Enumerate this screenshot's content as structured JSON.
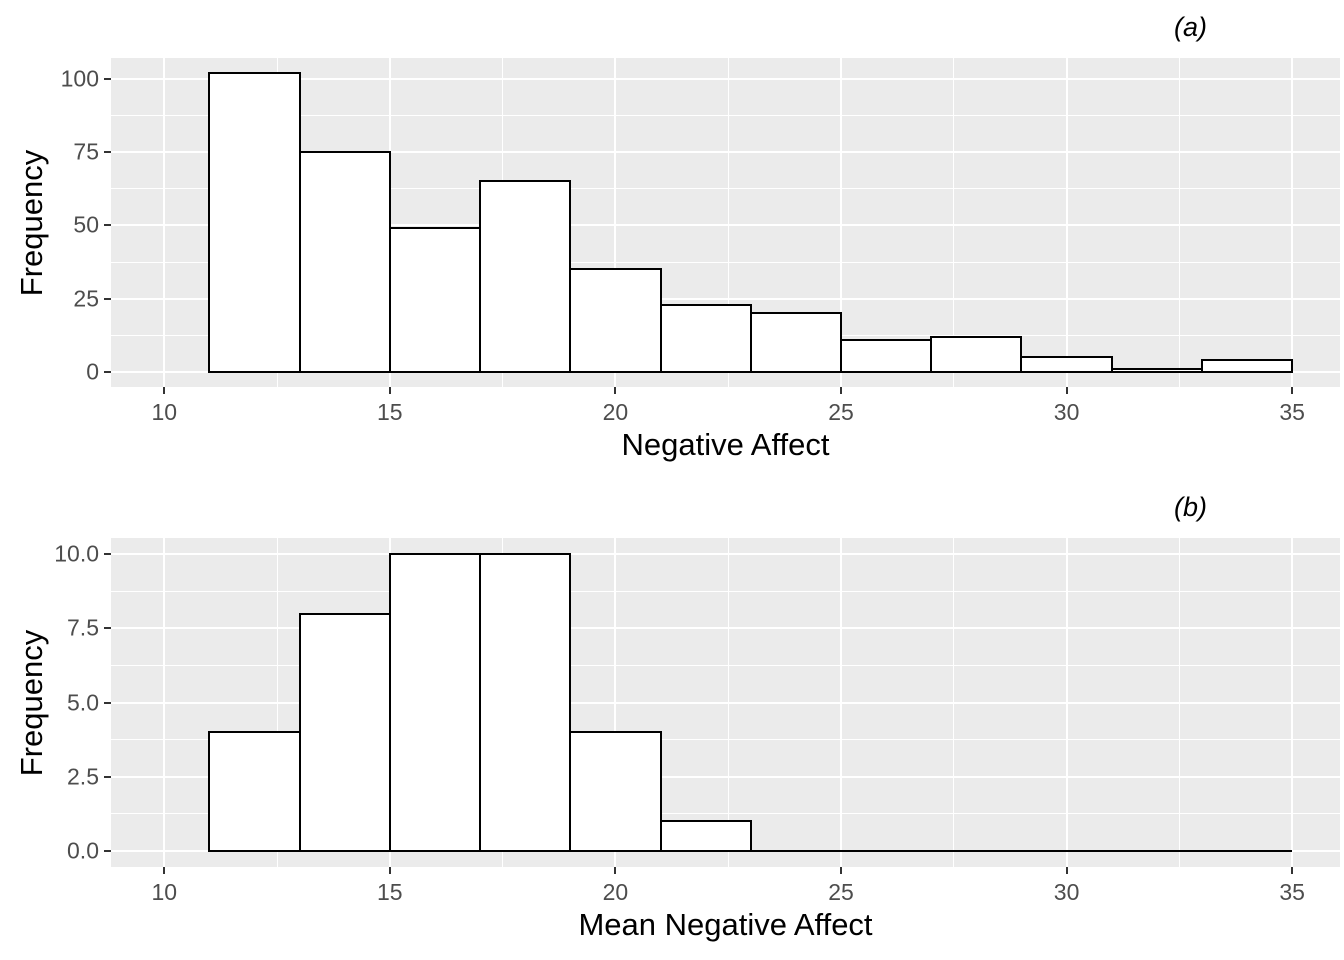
{
  "figure": {
    "background": "#FFFFFF",
    "panel_background": "#EBEBEB",
    "gridline_color": "#FFFFFF",
    "bar_fill": "#FFFFFF",
    "bar_stroke": "#000000",
    "axis_text_color": "#4D4D4D",
    "tick_mark_color": "#333333",
    "title_color": "#000000"
  },
  "chart_data": [
    {
      "type": "bar",
      "panel_label": "(a)",
      "xlabel": "Negative Affect",
      "ylabel": "Frequency",
      "bin_width": 2,
      "bin_edges": [
        11,
        13,
        15,
        17,
        19,
        21,
        23,
        25,
        27,
        29,
        31,
        33,
        35
      ],
      "values": [
        102,
        75,
        49,
        65,
        35,
        23,
        20,
        11,
        12,
        5,
        1,
        4
      ],
      "x_ticks": [
        10,
        15,
        20,
        25,
        30,
        35
      ],
      "x_tick_labels": [
        "10",
        "15",
        "20",
        "25",
        "30",
        "35"
      ],
      "y_ticks": [
        0,
        25,
        50,
        75,
        100
      ],
      "y_tick_labels": [
        "0",
        "25",
        "50",
        "75",
        "100"
      ],
      "x_minor": [
        12.5,
        17.5,
        22.5,
        27.5,
        32.5
      ],
      "y_minor": [
        12.5,
        37.5,
        62.5,
        87.5
      ],
      "xlim": [
        8.82,
        36.06
      ],
      "ylim": [
        -5.1,
        107.1
      ],
      "grid": true,
      "legend": "none",
      "baseline_extend_to": null
    },
    {
      "type": "bar",
      "panel_label": "(b)",
      "xlabel": "Mean Negative Affect",
      "ylabel": "Frequency",
      "bin_width": 2,
      "bin_edges": [
        11,
        13,
        15,
        17,
        19,
        21,
        23
      ],
      "values": [
        4,
        8,
        10,
        10,
        4,
        1
      ],
      "x_ticks": [
        10,
        15,
        20,
        25,
        30,
        35
      ],
      "x_tick_labels": [
        "10",
        "15",
        "20",
        "25",
        "30",
        "35"
      ],
      "y_ticks": [
        0,
        2.5,
        5,
        7.5,
        10
      ],
      "y_tick_labels": [
        "0.0",
        "2.5",
        "5.0",
        "7.5",
        "10.0"
      ],
      "x_minor": [
        12.5,
        17.5,
        22.5,
        27.5,
        32.5
      ],
      "y_minor": [
        1.25,
        3.75,
        6.25,
        8.75
      ],
      "xlim": [
        8.82,
        36.06
      ],
      "ylim": [
        -0.55,
        10.55
      ],
      "grid": true,
      "legend": "none",
      "baseline_extend_to": 35
    }
  ]
}
